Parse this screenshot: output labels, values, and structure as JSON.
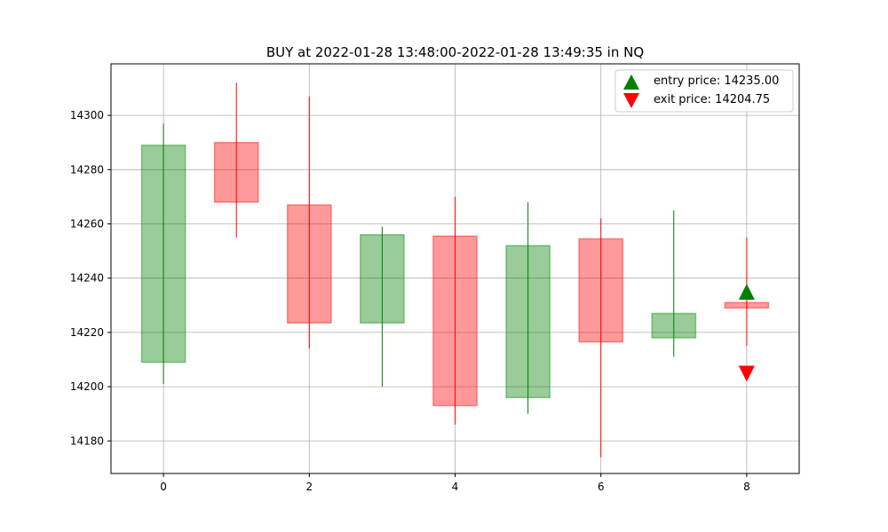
{
  "chart_data": {
    "type": "candlestick",
    "title": "BUY at 2022-01-28 13:48:00-2022-01-28 13:49:35 in NQ",
    "xlabel": "",
    "ylabel": "",
    "xlim": [
      -0.72,
      8.72
    ],
    "ylim": [
      14168,
      14319
    ],
    "x_ticks": [
      0,
      2,
      4,
      6,
      8
    ],
    "y_ticks": [
      14180,
      14200,
      14220,
      14240,
      14260,
      14280,
      14300
    ],
    "grid": true,
    "legend_position": "top-right",
    "up_color": "#008000",
    "down_color": "#ff0000",
    "candles": [
      {
        "x": 0,
        "open": 14209,
        "high": 14297,
        "low": 14201,
        "close": 14289
      },
      {
        "x": 1,
        "open": 14290,
        "high": 14312,
        "low": 14255,
        "close": 14268
      },
      {
        "x": 2,
        "open": 14267,
        "high": 14307,
        "low": 14214,
        "close": 14223.5
      },
      {
        "x": 3,
        "open": 14223.5,
        "high": 14259,
        "low": 14200,
        "close": 14256
      },
      {
        "x": 4,
        "open": 14255.5,
        "high": 14270,
        "low": 14186,
        "close": 14193
      },
      {
        "x": 5,
        "open": 14196,
        "high": 14268,
        "low": 14190,
        "close": 14252
      },
      {
        "x": 6,
        "open": 14254.5,
        "high": 14262,
        "low": 14174,
        "close": 14216.5
      },
      {
        "x": 7,
        "open": 14218,
        "high": 14265,
        "low": 14211,
        "close": 14227
      },
      {
        "x": 8,
        "open": 14231,
        "high": 14255,
        "low": 14215,
        "close": 14229
      }
    ],
    "markers": [
      {
        "name": "entry price: 14235.00",
        "x": 8,
        "y": 14235.0,
        "shape": "triangle-up",
        "color": "#008000"
      },
      {
        "name": "exit price: 14204.75",
        "x": 8,
        "y": 14204.75,
        "shape": "triangle-down",
        "color": "#ff0000"
      }
    ]
  }
}
